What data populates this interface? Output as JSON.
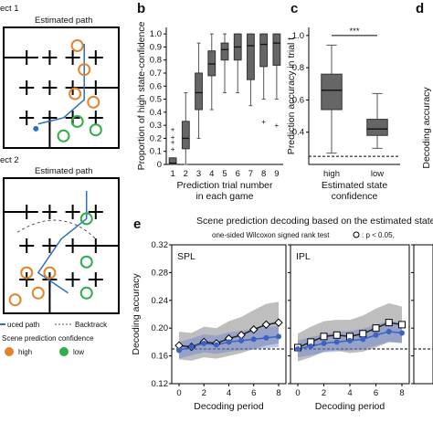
{
  "panel_a": {
    "top_label": "ect 1",
    "top_title": "Estimated path",
    "bottom_label": "ect 2",
    "bottom_title": "Estimated path",
    "legend_path": "uced path",
    "legend_backtrack": "Backtrack",
    "legend_conf_title": "Scene prediction confidence",
    "legend_high": "high",
    "legend_low": "low",
    "colors": {
      "high": "#e8822a",
      "low": "#2fae4a",
      "path": "#2f6fbf",
      "estimated": "#3a9a9a"
    }
  },
  "panel_letters": {
    "b": "b",
    "c": "c",
    "d": "d",
    "e": "e"
  },
  "panel_d": {
    "ylabel": "Decoding accuracy"
  },
  "chart_data": [
    {
      "id": "b",
      "type": "box",
      "xlabel": "Prediction trial number\nin each game",
      "xlabel_lines": [
        "Prediction trial number",
        "in each game"
      ],
      "ylabel": "Proportion of high state-confidence",
      "ylim": [
        0,
        1.05
      ],
      "yticks": [
        "0",
        "0.1",
        "0.2",
        "0.3",
        "0.4",
        "0.5",
        "0.6",
        "0.7",
        "0.8",
        "0.9",
        "1.0"
      ],
      "categories": [
        "1",
        "2",
        "3",
        "4",
        "5",
        "6",
        "7",
        "8",
        "9"
      ],
      "boxes": [
        {
          "min": 0,
          "q1": 0,
          "median": 0.01,
          "q3": 0.05,
          "max": 0.05,
          "outliers": [
            0.12,
            0.17,
            0.21,
            0.27
          ]
        },
        {
          "min": 0,
          "q1": 0.12,
          "median": 0.2,
          "q3": 0.33,
          "max": 0.55,
          "outliers": []
        },
        {
          "min": 0.2,
          "q1": 0.42,
          "median": 0.55,
          "q3": 0.7,
          "max": 0.93,
          "outliers": []
        },
        {
          "min": 0.42,
          "q1": 0.68,
          "median": 0.77,
          "q3": 0.87,
          "max": 1.0,
          "outliers": []
        },
        {
          "min": 0.55,
          "q1": 0.8,
          "median": 0.88,
          "q3": 0.93,
          "max": 1.0,
          "outliers": []
        },
        {
          "min": 0.55,
          "q1": 0.8,
          "median": 0.9,
          "q3": 1.0,
          "max": 1.0,
          "outliers": []
        },
        {
          "min": 0.45,
          "q1": 0.65,
          "median": 0.91,
          "q3": 1.0,
          "max": 1.0,
          "outliers": []
        },
        {
          "min": 0.5,
          "q1": 0.75,
          "median": 0.92,
          "q3": 1.0,
          "max": 1.0,
          "outliers": [
            0.33
          ]
        },
        {
          "min": 0.5,
          "q1": 0.76,
          "median": 0.93,
          "q3": 1.0,
          "max": 1.0,
          "outliers": [
            0.3
          ]
        }
      ]
    },
    {
      "id": "c",
      "type": "box",
      "xlabel_lines": [
        "Estimated state",
        "confidence"
      ],
      "ylabel": "Prediction accuracy in trial t",
      "ylim": [
        0.2,
        1.05
      ],
      "yticks": [
        "0.4",
        "0.6",
        "0.8",
        "1.0"
      ],
      "categories": [
        "high",
        "low"
      ],
      "significance": "***",
      "chance_level": 0.25,
      "boxes": [
        {
          "min": 0.27,
          "q1": 0.54,
          "median": 0.66,
          "q3": 0.76,
          "max": 0.94
        },
        {
          "min": 0.3,
          "q1": 0.38,
          "median": 0.42,
          "q3": 0.48,
          "max": 0.64
        }
      ]
    },
    {
      "id": "e",
      "type": "line",
      "title": "Scene prediction decoding based on the estimated state",
      "legend_text": "one-sided Wilcoxon signed rank test",
      "legend_p": ": p < 0.05,",
      "xlabel": "Decoding period",
      "ylabel": "Decoding accuracy",
      "ylim": [
        0.12,
        0.32
      ],
      "yticks": [
        "0.12",
        "0.16",
        "0.20",
        "0.24",
        "0.28",
        "0.32"
      ],
      "chance_level": 0.17,
      "panels": [
        {
          "name": "SPL",
          "xticks": [
            "0",
            "2",
            "4",
            "6",
            "8"
          ],
          "x": [
            0,
            1,
            2,
            3,
            4,
            5,
            6,
            7,
            8
          ],
          "high_mean": [
            0.175,
            0.173,
            0.18,
            0.178,
            0.185,
            0.19,
            0.198,
            0.205,
            0.208
          ],
          "low_mean": [
            0.168,
            0.173,
            0.178,
            0.176,
            0.18,
            0.182,
            0.184,
            0.186,
            0.188
          ],
          "high_band": [
            0.02,
            0.02,
            0.022,
            0.022,
            0.025,
            0.026,
            0.028,
            0.03,
            0.03
          ],
          "low_band": [
            0.012,
            0.012,
            0.013,
            0.013,
            0.014,
            0.014,
            0.015,
            0.015,
            0.015
          ]
        },
        {
          "name": "IPL",
          "xticks": [
            "0",
            "2",
            "4",
            "6",
            "8"
          ],
          "x": [
            0,
            1,
            2,
            3,
            4,
            5,
            6,
            7,
            8
          ],
          "high_mean": [
            0.172,
            0.18,
            0.188,
            0.19,
            0.188,
            0.192,
            0.2,
            0.208,
            0.205
          ],
          "low_mean": [
            0.17,
            0.174,
            0.178,
            0.18,
            0.182,
            0.184,
            0.19,
            0.195,
            0.193
          ],
          "high_band": [
            0.02,
            0.022,
            0.022,
            0.022,
            0.024,
            0.026,
            0.028,
            0.028,
            0.026
          ],
          "low_band": [
            0.012,
            0.013,
            0.013,
            0.014,
            0.014,
            0.015,
            0.015,
            0.015,
            0.015
          ]
        }
      ]
    }
  ]
}
